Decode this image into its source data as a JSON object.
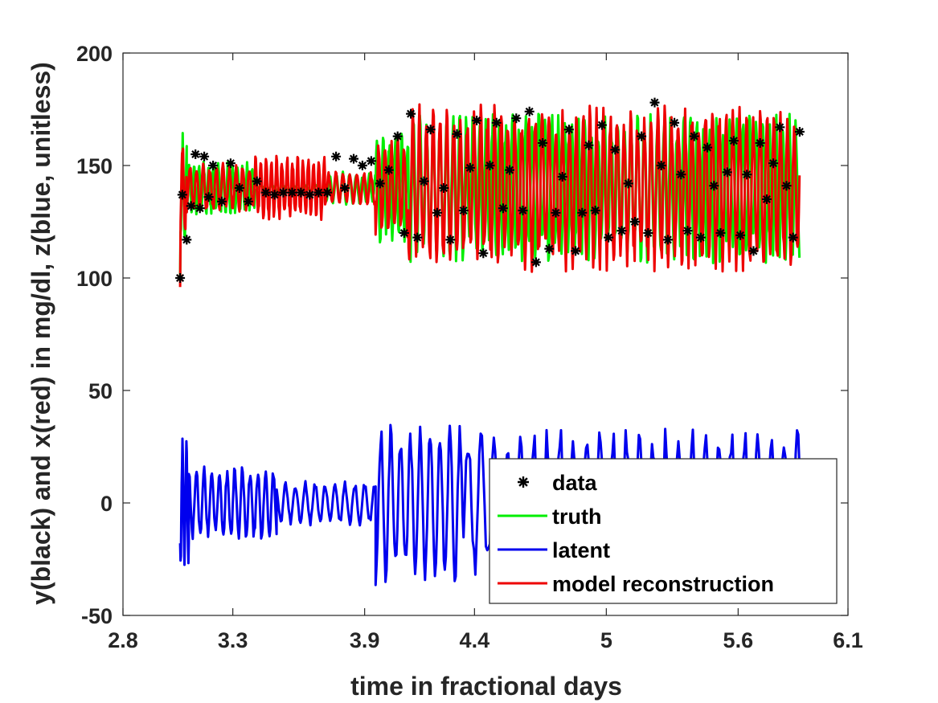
{
  "chart_data": {
    "type": "line",
    "title": "",
    "xlabel": "time in fractional days",
    "ylabel": "y(black) and x(red) in mg/dl, z(blue, unitless)",
    "xlim": [
      2.8,
      6.1
    ],
    "ylim": [
      -50,
      200
    ],
    "xticks": [
      2.8,
      3.3,
      3.9,
      4.4,
      5.0,
      5.6,
      6.1
    ],
    "xtick_labels": [
      "2.8",
      "3.3",
      "3.9",
      "4.4",
      "5",
      "5.6",
      "6.1"
    ],
    "yticks": [
      -50,
      0,
      50,
      100,
      150,
      200
    ],
    "ytick_labels": [
      "-50",
      "0",
      "50",
      "100",
      "150",
      "200"
    ],
    "grid": false,
    "legend_position": "bottom-right",
    "series": [
      {
        "name": "data",
        "style": "markers",
        "marker": "*",
        "color": "#000000",
        "x": [
          3.06,
          3.07,
          3.09,
          3.11,
          3.13,
          3.15,
          3.17,
          3.19,
          3.21,
          3.25,
          3.29,
          3.33,
          3.37,
          3.41,
          3.45,
          3.49,
          3.53,
          3.57,
          3.61,
          3.65,
          3.69,
          3.73,
          3.77,
          3.81,
          3.85,
          3.89,
          3.93,
          3.97,
          4.01,
          4.05,
          4.08,
          4.11,
          4.14,
          4.17,
          4.2,
          4.23,
          4.26,
          4.29,
          4.32,
          4.35,
          4.38,
          4.41,
          4.44,
          4.47,
          4.5,
          4.53,
          4.56,
          4.59,
          4.62,
          4.65,
          4.68,
          4.71,
          4.74,
          4.77,
          4.8,
          4.83,
          4.86,
          4.89,
          4.92,
          4.95,
          4.98,
          5.01,
          5.04,
          5.07,
          5.1,
          5.13,
          5.16,
          5.19,
          5.22,
          5.25,
          5.28,
          5.31,
          5.34,
          5.37,
          5.4,
          5.43,
          5.46,
          5.49,
          5.52,
          5.55,
          5.58,
          5.61,
          5.64,
          5.67,
          5.7,
          5.73,
          5.76,
          5.79,
          5.82,
          5.85,
          5.88
        ],
        "y": [
          100,
          137,
          117,
          132,
          155,
          131,
          154,
          136,
          150,
          134,
          151,
          140,
          134,
          143,
          138,
          137,
          138,
          138,
          138,
          137,
          138,
          138,
          154,
          140,
          153,
          150,
          152,
          142,
          148,
          163,
          120,
          173,
          118,
          143,
          166,
          129,
          140,
          117,
          164,
          130,
          149,
          170,
          111,
          150,
          169,
          131,
          148,
          171,
          130,
          174,
          107,
          160,
          113,
          129,
          145,
          166,
          112,
          129,
          159,
          130,
          168,
          118,
          157,
          121,
          142,
          125,
          163,
          120,
          178,
          150,
          117,
          169,
          146,
          121,
          163,
          118,
          158,
          141,
          120,
          147,
          161,
          119,
          146,
          112,
          160,
          135,
          151,
          167,
          141,
          118,
          165
        ]
      },
      {
        "name": "truth",
        "style": "line",
        "color": "#00ee00",
        "mean": 140,
        "segments": [
          {
            "t0": 3.06,
            "t1": 3.09,
            "amp": 20,
            "period": 0.02
          },
          {
            "t0": 3.09,
            "t1": 3.4,
            "amp": 10,
            "period": 0.022
          },
          {
            "t0": 3.4,
            "t1": 3.72,
            "amp": 1,
            "period": 0.05
          },
          {
            "t0": 3.72,
            "t1": 3.95,
            "amp": 6,
            "period": 0.03
          },
          {
            "t0": 3.95,
            "t1": 4.1,
            "amp": 20,
            "period": 0.028
          },
          {
            "t0": 4.1,
            "t1": 5.88,
            "amp": 28,
            "period": 0.03
          }
        ],
        "start_value": 100
      },
      {
        "name": "latent",
        "style": "line",
        "color": "#0000ee",
        "mean": 0,
        "segments": [
          {
            "t0": 3.06,
            "t1": 3.1,
            "amp": 24,
            "period": 0.018
          },
          {
            "t0": 3.1,
            "t1": 3.5,
            "amp": 14,
            "period": 0.035
          },
          {
            "t0": 3.5,
            "t1": 3.95,
            "amp": 8,
            "period": 0.045
          },
          {
            "t0": 3.95,
            "t1": 4.35,
            "amp": 30,
            "period": 0.045
          },
          {
            "t0": 4.35,
            "t1": 5.88,
            "amp": 28,
            "period": 0.06
          }
        ]
      },
      {
        "name": "model reconstruction",
        "style": "line",
        "color": "#ee0000",
        "mean": 140,
        "segments": [
          {
            "t0": 3.06,
            "t1": 3.09,
            "amp": 20,
            "period": 0.022
          },
          {
            "t0": 3.09,
            "t1": 3.4,
            "amp": 9,
            "period": 0.03
          },
          {
            "t0": 3.4,
            "t1": 3.72,
            "amp": 12,
            "period": 0.024
          },
          {
            "t0": 3.72,
            "t1": 3.95,
            "amp": 6,
            "period": 0.032
          },
          {
            "t0": 3.95,
            "t1": 4.1,
            "amp": 18,
            "period": 0.029
          },
          {
            "t0": 4.1,
            "t1": 5.88,
            "amp": 30,
            "period": 0.031
          }
        ],
        "start_value": 96
      }
    ],
    "legend": [
      "data",
      "truth",
      "latent",
      "model reconstruction"
    ]
  }
}
